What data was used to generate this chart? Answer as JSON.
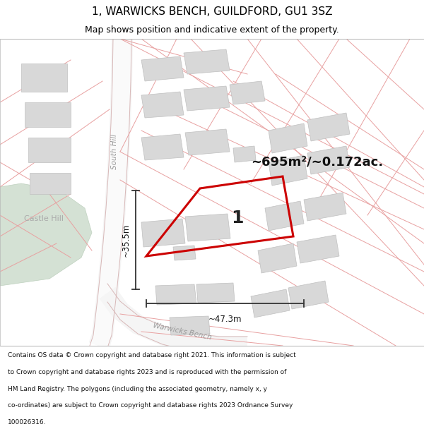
{
  "title": "1, WARWICKS BENCH, GUILDFORD, GU1 3SZ",
  "subtitle": "Map shows position and indicative extent of the property.",
  "area_label": "~695m²/~0.172ac.",
  "plot_number": "1",
  "width_label": "~47.3m",
  "height_label": "~35.5m",
  "footer_lines": [
    "Contains OS data © Crown copyright and database right 2021. This information is subject",
    "to Crown copyright and database rights 2023 and is reproduced with the permission of",
    "HM Land Registry. The polygons (including the associated geometry, namely x, y",
    "co-ordinates) are subject to Crown copyright and database rights 2023 Ordnance Survey",
    "100026316."
  ],
  "map_bg": "#ffffff",
  "road_fill": "#f2f2f2",
  "road_edge": "#e0c8c8",
  "building_color": "#d8d8d8",
  "building_edge": "#c0c0c0",
  "green_color": "#cddccd",
  "pink_line": "#e8a0a0",
  "plot_color": "#cc0000",
  "dim_color": "#333333",
  "label_color": "#666666",
  "title_size": 11,
  "subtitle_size": 9
}
